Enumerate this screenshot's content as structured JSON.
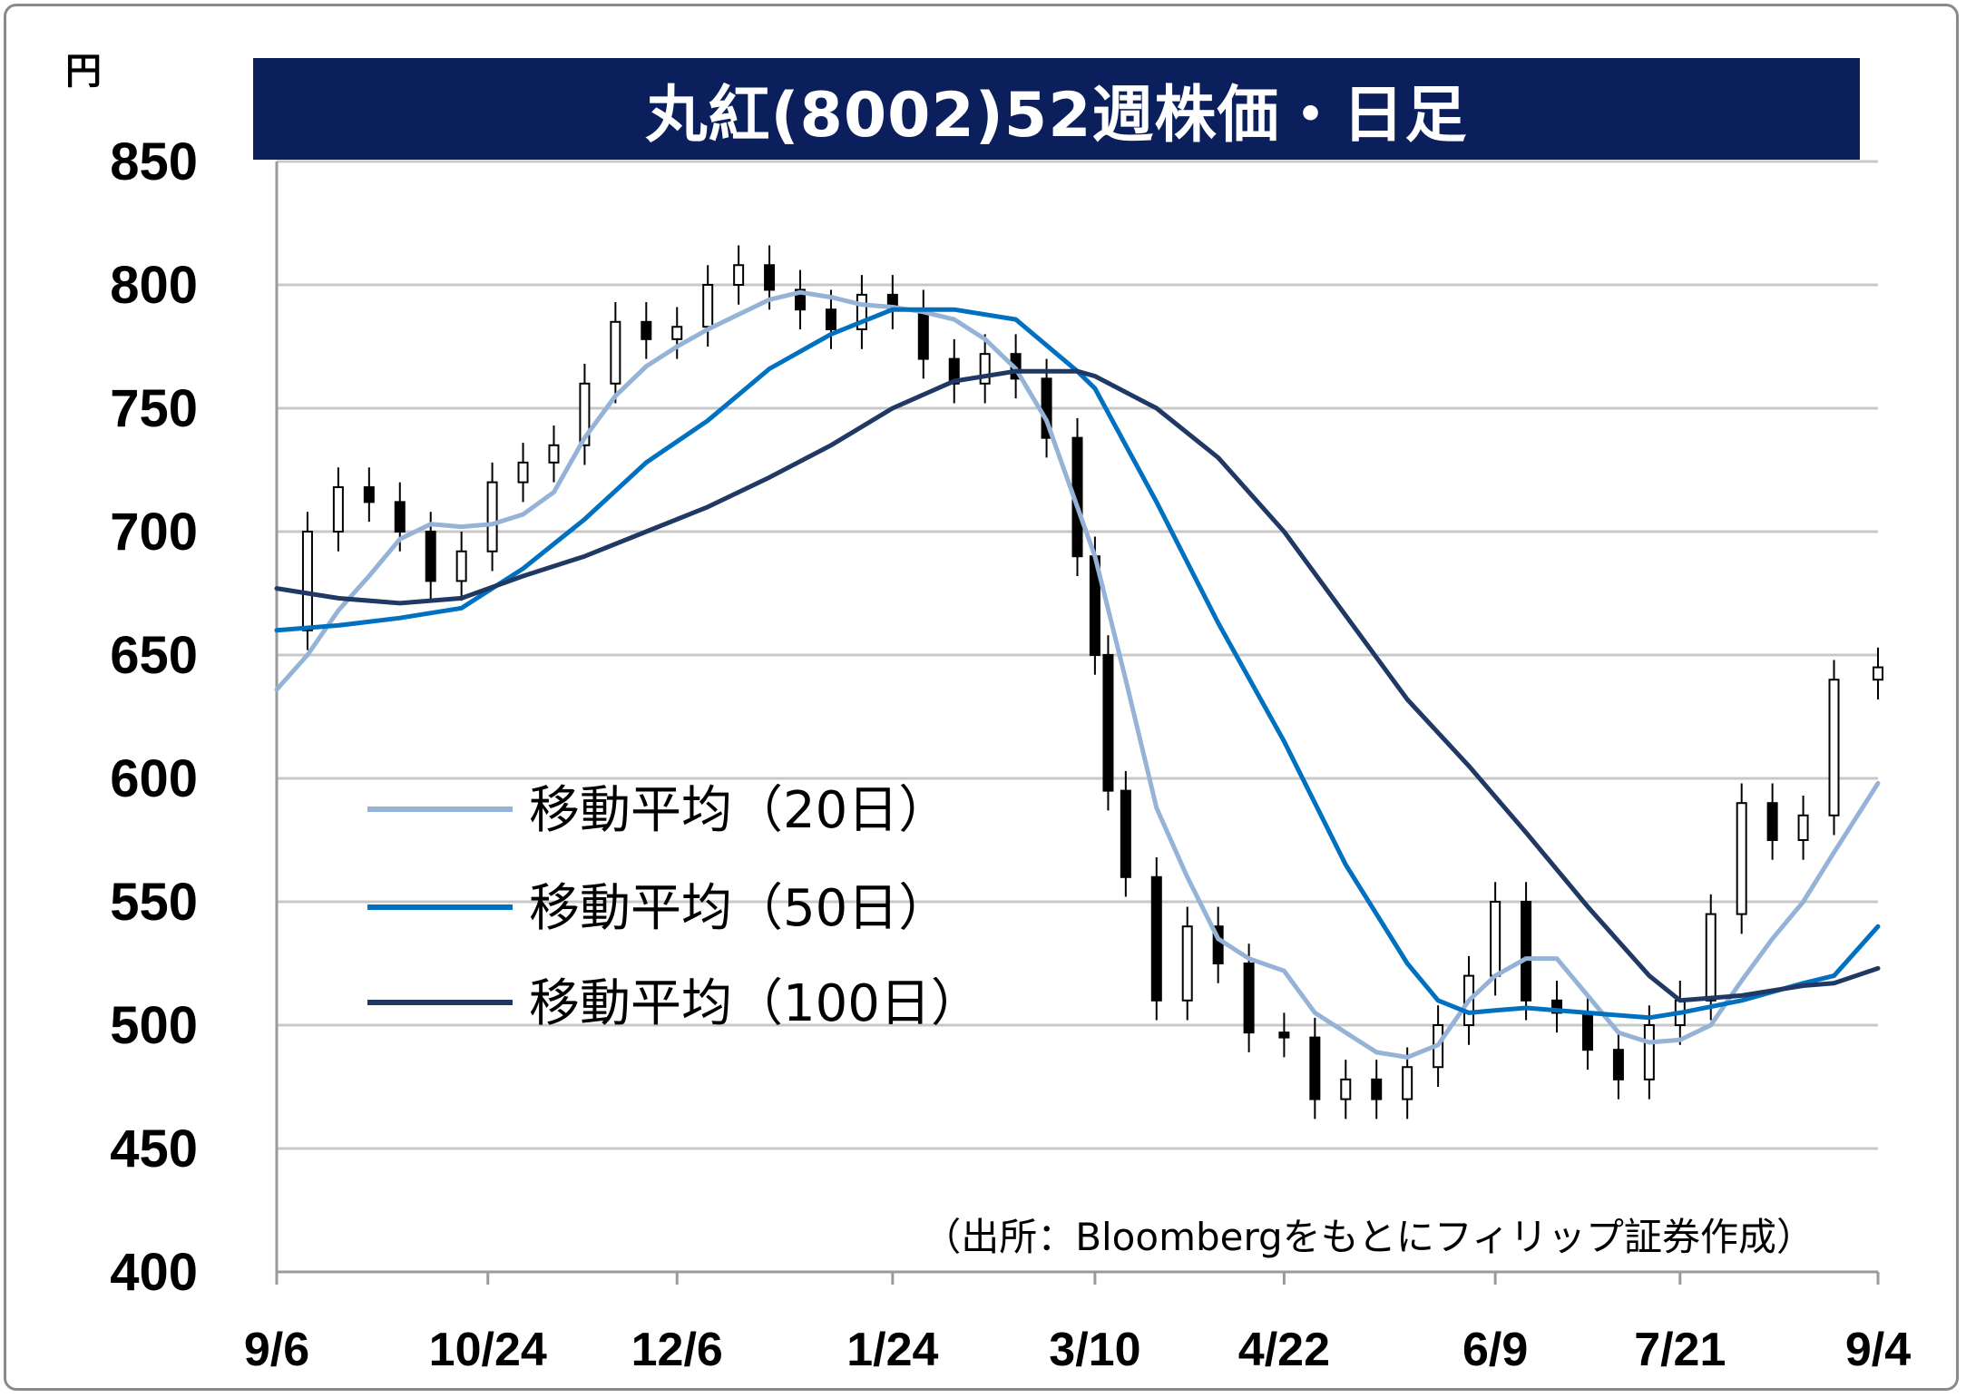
{
  "chart_data": {
    "type": "line",
    "title": "丸紅(8002)52週株価・日足",
    "y_unit": "円",
    "ylim": [
      400,
      850
    ],
    "yticks": [
      "400",
      "450",
      "500",
      "550",
      "600",
      "650",
      "700",
      "750",
      "800",
      "850"
    ],
    "xlim": [
      "2019-09-06",
      "2020-09-04"
    ],
    "xticks": [
      {
        "date": "2019-09-06",
        "label": "9/6"
      },
      {
        "date": "2019-10-24",
        "label": "10/24"
      },
      {
        "date": "2019-12-06",
        "label": "12/6"
      },
      {
        "date": "2020-01-24",
        "label": "1/24"
      },
      {
        "date": "2020-03-10",
        "label": "3/10"
      },
      {
        "date": "2020-04-22",
        "label": "4/22"
      },
      {
        "date": "2020-06-09",
        "label": "6/9"
      },
      {
        "date": "2020-07-21",
        "label": "7/21"
      },
      {
        "date": "2020-09-04",
        "label": "9/4"
      }
    ],
    "grid": true,
    "legend_position": "center-left",
    "source": "（出所：Bloombergをもとにフィリップ証券作成）",
    "series": [
      {
        "name": "移動平均（20日）",
        "color": "#95b3d7",
        "points": [
          [
            "2019-09-06",
            636
          ],
          [
            "2019-09-13",
            650
          ],
          [
            "2019-09-20",
            668
          ],
          [
            "2019-09-27",
            682
          ],
          [
            "2019-10-04",
            697
          ],
          [
            "2019-10-11",
            703
          ],
          [
            "2019-10-18",
            702
          ],
          [
            "2019-10-25",
            703
          ],
          [
            "2019-11-01",
            707
          ],
          [
            "2019-11-08",
            716
          ],
          [
            "2019-11-15",
            738
          ],
          [
            "2019-11-22",
            755
          ],
          [
            "2019-11-29",
            767
          ],
          [
            "2019-12-06",
            775
          ],
          [
            "2019-12-13",
            782
          ],
          [
            "2019-12-20",
            788
          ],
          [
            "2019-12-27",
            794
          ],
          [
            "2020-01-03",
            797
          ],
          [
            "2020-01-10",
            795
          ],
          [
            "2020-01-17",
            792
          ],
          [
            "2020-01-24",
            791
          ],
          [
            "2020-01-31",
            789
          ],
          [
            "2020-02-07",
            786
          ],
          [
            "2020-02-14",
            778
          ],
          [
            "2020-02-21",
            766
          ],
          [
            "2020-02-28",
            745
          ],
          [
            "2020-03-06",
            710
          ],
          [
            "2020-03-10",
            690
          ],
          [
            "2020-03-17",
            640
          ],
          [
            "2020-03-24",
            588
          ],
          [
            "2020-03-31",
            560
          ],
          [
            "2020-04-07",
            535
          ],
          [
            "2020-04-14",
            527
          ],
          [
            "2020-04-22",
            522
          ],
          [
            "2020-04-29",
            505
          ],
          [
            "2020-05-06",
            497
          ],
          [
            "2020-05-13",
            489
          ],
          [
            "2020-05-20",
            487
          ],
          [
            "2020-05-27",
            492
          ],
          [
            "2020-06-03",
            510
          ],
          [
            "2020-06-09",
            520
          ],
          [
            "2020-06-16",
            527
          ],
          [
            "2020-06-23",
            527
          ],
          [
            "2020-06-30",
            512
          ],
          [
            "2020-07-07",
            497
          ],
          [
            "2020-07-14",
            493
          ],
          [
            "2020-07-21",
            494
          ],
          [
            "2020-07-28",
            500
          ],
          [
            "2020-08-04",
            518
          ],
          [
            "2020-08-11",
            535
          ],
          [
            "2020-08-18",
            550
          ],
          [
            "2020-08-25",
            570
          ],
          [
            "2020-09-04",
            598
          ]
        ]
      },
      {
        "name": "移動平均（50日）",
        "color": "#0070c0",
        "points": [
          [
            "2019-09-06",
            660
          ],
          [
            "2019-09-20",
            662
          ],
          [
            "2019-10-04",
            665
          ],
          [
            "2019-10-18",
            669
          ],
          [
            "2019-11-01",
            685
          ],
          [
            "2019-11-15",
            705
          ],
          [
            "2019-11-29",
            728
          ],
          [
            "2019-12-13",
            745
          ],
          [
            "2019-12-27",
            766
          ],
          [
            "2020-01-10",
            780
          ],
          [
            "2020-01-24",
            790
          ],
          [
            "2020-02-07",
            790
          ],
          [
            "2020-02-21",
            786
          ],
          [
            "2020-03-06",
            765
          ],
          [
            "2020-03-10",
            758
          ],
          [
            "2020-03-24",
            712
          ],
          [
            "2020-04-07",
            663
          ],
          [
            "2020-04-22",
            615
          ],
          [
            "2020-05-06",
            565
          ],
          [
            "2020-05-20",
            525
          ],
          [
            "2020-05-27",
            510
          ],
          [
            "2020-06-03",
            505
          ],
          [
            "2020-06-09",
            506
          ],
          [
            "2020-06-16",
            507
          ],
          [
            "2020-06-30",
            505
          ],
          [
            "2020-07-14",
            503
          ],
          [
            "2020-07-21",
            505
          ],
          [
            "2020-08-04",
            510
          ],
          [
            "2020-08-18",
            517
          ],
          [
            "2020-08-25",
            520
          ],
          [
            "2020-09-04",
            540
          ]
        ]
      },
      {
        "name": "移動平均（100日）",
        "color": "#1f3864",
        "points": [
          [
            "2019-09-06",
            677
          ],
          [
            "2019-09-20",
            673
          ],
          [
            "2019-10-04",
            671
          ],
          [
            "2019-10-18",
            673
          ],
          [
            "2019-11-01",
            682
          ],
          [
            "2019-11-15",
            690
          ],
          [
            "2019-11-29",
            700
          ],
          [
            "2019-12-13",
            710
          ],
          [
            "2019-12-27",
            722
          ],
          [
            "2020-01-10",
            735
          ],
          [
            "2020-01-24",
            750
          ],
          [
            "2020-02-07",
            761
          ],
          [
            "2020-02-21",
            765
          ],
          [
            "2020-03-06",
            765
          ],
          [
            "2020-03-10",
            763
          ],
          [
            "2020-03-24",
            750
          ],
          [
            "2020-04-07",
            730
          ],
          [
            "2020-04-22",
            700
          ],
          [
            "2020-05-06",
            666
          ],
          [
            "2020-05-20",
            632
          ],
          [
            "2020-06-03",
            605
          ],
          [
            "2020-06-16",
            578
          ],
          [
            "2020-06-30",
            548
          ],
          [
            "2020-07-14",
            520
          ],
          [
            "2020-07-21",
            510
          ],
          [
            "2020-08-04",
            512
          ],
          [
            "2020-08-18",
            516
          ],
          [
            "2020-08-25",
            517
          ],
          [
            "2020-09-04",
            523
          ]
        ]
      }
    ],
    "daily_close": [
      [
        "2019-09-06",
        660
      ],
      [
        "2019-09-13",
        700
      ],
      [
        "2019-09-20",
        718
      ],
      [
        "2019-09-27",
        712
      ],
      [
        "2019-10-04",
        700
      ],
      [
        "2019-10-11",
        680
      ],
      [
        "2019-10-18",
        692
      ],
      [
        "2019-10-25",
        720
      ],
      [
        "2019-11-01",
        728
      ],
      [
        "2019-11-08",
        735
      ],
      [
        "2019-11-15",
        760
      ],
      [
        "2019-11-22",
        785
      ],
      [
        "2019-11-29",
        778
      ],
      [
        "2019-12-06",
        783
      ],
      [
        "2019-12-13",
        800
      ],
      [
        "2019-12-20",
        808
      ],
      [
        "2019-12-27",
        798
      ],
      [
        "2020-01-03",
        790
      ],
      [
        "2020-01-10",
        782
      ],
      [
        "2020-01-17",
        796
      ],
      [
        "2020-01-24",
        790
      ],
      [
        "2020-01-31",
        770
      ],
      [
        "2020-02-07",
        760
      ],
      [
        "2020-02-14",
        772
      ],
      [
        "2020-02-21",
        762
      ],
      [
        "2020-02-28",
        738
      ],
      [
        "2020-03-06",
        690
      ],
      [
        "2020-03-10",
        650
      ],
      [
        "2020-03-13",
        595
      ],
      [
        "2020-03-17",
        560
      ],
      [
        "2020-03-24",
        510
      ],
      [
        "2020-03-31",
        540
      ],
      [
        "2020-04-07",
        525
      ],
      [
        "2020-04-14",
        497
      ],
      [
        "2020-04-22",
        495
      ],
      [
        "2020-04-29",
        470
      ],
      [
        "2020-05-06",
        478
      ],
      [
        "2020-05-13",
        470
      ],
      [
        "2020-05-20",
        483
      ],
      [
        "2020-05-27",
        500
      ],
      [
        "2020-06-03",
        520
      ],
      [
        "2020-06-09",
        550
      ],
      [
        "2020-06-16",
        510
      ],
      [
        "2020-06-23",
        505
      ],
      [
        "2020-06-30",
        490
      ],
      [
        "2020-07-07",
        478
      ],
      [
        "2020-07-14",
        500
      ],
      [
        "2020-07-21",
        510
      ],
      [
        "2020-07-28",
        545
      ],
      [
        "2020-08-04",
        590
      ],
      [
        "2020-08-11",
        575
      ],
      [
        "2020-08-18",
        585
      ],
      [
        "2020-08-25",
        640
      ],
      [
        "2020-09-04",
        645
      ]
    ]
  }
}
